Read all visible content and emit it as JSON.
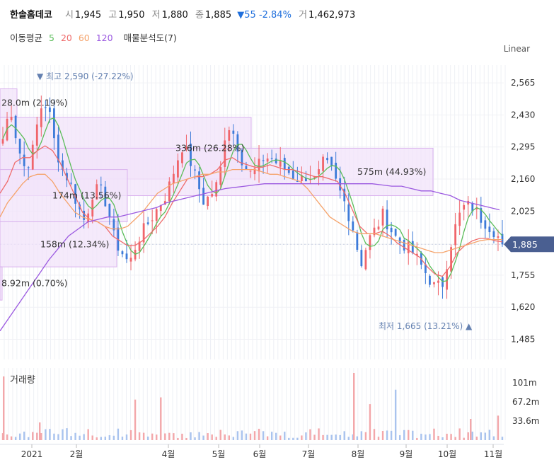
{
  "header": {
    "name": "한솔홈데코",
    "open_label": "시",
    "open": "1,945",
    "high_label": "고",
    "high": "1,950",
    "low_label": "저",
    "low": "1,880",
    "close_label": "종",
    "close": "1,885",
    "change": "▼55 -2.84%",
    "volume_label": "거",
    "volume": "1,462,973"
  },
  "indicators": {
    "ma_label": "이동평균",
    "ma5": "5",
    "ma20": "20",
    "ma60": "60",
    "ma120": "120",
    "vp_label": "매물분석도(7)"
  },
  "scale_label": "Linear",
  "volume_panel_label": "거래량",
  "colors": {
    "up": "#f0656b",
    "down": "#3d7bd9",
    "ma5": "#5bbd5a",
    "ma20": "#ef6b6b",
    "ma60": "#f5a36b",
    "ma120": "#9b59e0",
    "profile_fill": "#f2e3fa",
    "profile_stroke": "#d9b2ee",
    "marker": "#6380b0",
    "current_price_bg": "#4a5f91"
  },
  "chart_data": {
    "type": "candlestick",
    "y_axis": {
      "ticks": [
        "2,565",
        "2,430",
        "2,295",
        "2,160",
        "2,025",
        "1,885",
        "1,755",
        "1,620",
        "1,485"
      ],
      "range": [
        1400,
        2640
      ]
    },
    "x_axis": {
      "ticks": [
        "2021",
        "2월",
        "4월",
        "5월",
        "6월",
        "7월",
        "8월",
        "9월",
        "10월",
        "11월"
      ]
    },
    "current_price": "1,885",
    "high_marker": {
      "label": "최고",
      "value": "2,590 (-27.22%)"
    },
    "low_marker": {
      "label": "최저",
      "value": "1,665 (13.21%)"
    },
    "volume_profile": [
      {
        "label": "28.0m (2.19%)",
        "price_lo": 2420,
        "price_hi": 2540
      },
      {
        "label": "336m (26.28%)",
        "price_lo": 2160,
        "price_hi": 2420
      },
      {
        "label": "575m (44.93%)",
        "price_lo": 2090,
        "price_hi": 2290
      },
      {
        "label": "174m (13.56%)",
        "price_lo": 1980,
        "price_hi": 2200
      },
      {
        "label": "158m (12.34%)",
        "price_lo": 1790,
        "price_hi": 1980
      },
      {
        "label": "8.92m (0.70%)",
        "price_lo": 1650,
        "price_hi": 1790
      }
    ],
    "volume_axis": {
      "ticks": [
        "101m",
        "67.2m",
        "33.6m"
      ],
      "range": [
        0,
        120
      ]
    },
    "price_series": [
      2330,
      2470,
      2300,
      2200,
      2280,
      2460,
      2480,
      2300,
      2200,
      2150,
      2050,
      1980,
      2100,
      2120,
      2050,
      1900,
      1850,
      1800,
      1900,
      1950,
      2000,
      2050,
      2100,
      2200,
      2300,
      2250,
      2150,
      2060,
      2100,
      2150,
      2400,
      2350,
      2250,
      2180,
      2200,
      2250,
      2250,
      2220,
      2200,
      2170,
      2160,
      2180,
      2150,
      2230,
      2200,
      2120,
      2050,
      1950,
      1800,
      1900,
      1950,
      2010,
      1950,
      1900,
      1880,
      1850,
      1800,
      1750,
      1700,
      1720,
      1880,
      1990,
      2050,
      2040,
      2000,
      1970,
      1940,
      1885
    ],
    "ma20_series": [
      2100,
      2150,
      2230,
      2250,
      2250,
      2280,
      2300,
      2280,
      2230,
      2160,
      2090,
      2020,
      1990,
      1980,
      1960,
      1920,
      1900,
      1880,
      1880,
      1900,
      1930,
      1960,
      2000,
      2060,
      2110,
      2160,
      2170,
      2170,
      2180,
      2200,
      2240,
      2250,
      2230,
      2220,
      2210,
      2210,
      2220,
      2210,
      2200,
      2200,
      2190,
      2180,
      2170,
      2170,
      2160,
      2150,
      2100,
      2030,
      1960,
      1930,
      1930,
      1940,
      1920,
      1890,
      1870,
      1850,
      1830,
      1790,
      1760,
      1750,
      1790,
      1850,
      1880,
      1900,
      1910,
      1910,
      1900,
      1895
    ],
    "ma60_series": [
      2000,
      2060,
      2100,
      2140,
      2170,
      2180,
      2180,
      2150,
      2100,
      2060,
      2020,
      2000,
      1990,
      1980,
      1960,
      1950,
      1950,
      1960,
      1990,
      2020,
      2060,
      2100,
      2120,
      2140,
      2150,
      2160,
      2170,
      2180,
      2180,
      2190,
      2190,
      2200,
      2200,
      2200,
      2200,
      2190,
      2180,
      2180,
      2170,
      2160,
      2150,
      2120,
      2080,
      2040,
      2000,
      1980,
      1960,
      1940,
      1930,
      1930,
      1930,
      1920,
      1910,
      1900,
      1890,
      1880,
      1870,
      1860,
      1850,
      1850,
      1860,
      1870,
      1880,
      1890,
      1900,
      1905,
      1905,
      1905
    ],
    "ma120_series": [
      1520,
      1580,
      1640,
      1700,
      1760,
      1820,
      1870,
      1920,
      1950,
      1980,
      1990,
      2000,
      2000,
      2010,
      2020,
      2030,
      2040,
      2060,
      2070,
      2080,
      2090,
      2100,
      2110,
      2120,
      2125,
      2130,
      2135,
      2140,
      2140,
      2140,
      2140,
      2140,
      2140,
      2140,
      2140,
      2140,
      2140,
      2140,
      2140,
      2135,
      2130,
      2130,
      2120,
      2110,
      2110,
      2100,
      2090,
      2070,
      2060,
      2050,
      2040,
      2030
    ]
  }
}
